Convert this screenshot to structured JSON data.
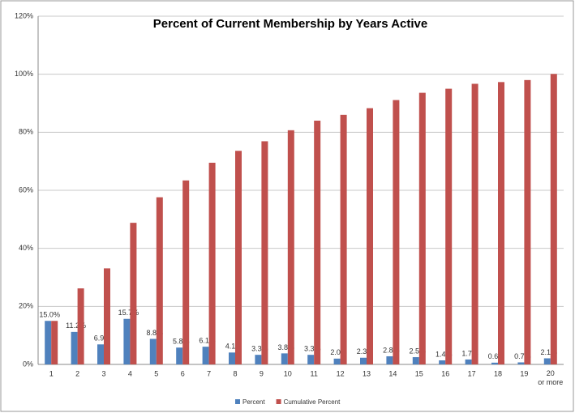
{
  "chart_data": {
    "type": "bar",
    "title": "Percent of Current Membership by Years Active",
    "categories": [
      "1",
      "2",
      "3",
      "4",
      "5",
      "6",
      "7",
      "8",
      "9",
      "10",
      "11",
      "12",
      "13",
      "14",
      "15",
      "16",
      "17",
      "18",
      "19",
      "20 or more"
    ],
    "series": [
      {
        "name": "Percent",
        "color": "#4f81bd",
        "values": [
          15.0,
          11.2,
          6.9,
          15.7,
          8.8,
          5.8,
          6.1,
          4.1,
          3.3,
          3.8,
          3.3,
          2.0,
          2.3,
          2.8,
          2.5,
          1.4,
          1.7,
          0.6,
          0.7,
          2.1
        ],
        "value_labels": [
          "15.0%",
          "11.2%",
          "6.9%",
          "15.7%",
          "8.8%",
          "5.8%",
          "6.1%",
          "4.1%",
          "3.3%",
          "3.8%",
          "3.3%",
          "2.0%",
          "2.3%",
          "2.8%",
          "2.5%",
          "1.4%",
          "1.7%",
          "0.6%",
          "0.7%",
          "2.1%"
        ]
      },
      {
        "name": "Cumulative Percent",
        "color": "#c0504d",
        "values": [
          15.0,
          26.2,
          33.1,
          48.8,
          57.6,
          63.4,
          69.5,
          73.6,
          76.9,
          80.7,
          84.0,
          86.0,
          88.3,
          91.1,
          93.6,
          95.0,
          96.7,
          97.3,
          98.0,
          100.1
        ]
      }
    ],
    "ylim": [
      0,
      120
    ],
    "yticks": [
      {
        "value": 0,
        "label": "0%"
      },
      {
        "value": 20,
        "label": "20%"
      },
      {
        "value": 40,
        "label": "40%"
      },
      {
        "value": 60,
        "label": "60%"
      },
      {
        "value": 80,
        "label": "80%"
      },
      {
        "value": 100,
        "label": "100%"
      },
      {
        "value": 120,
        "label": "120%"
      }
    ],
    "grid": true,
    "legend": "bottom"
  }
}
